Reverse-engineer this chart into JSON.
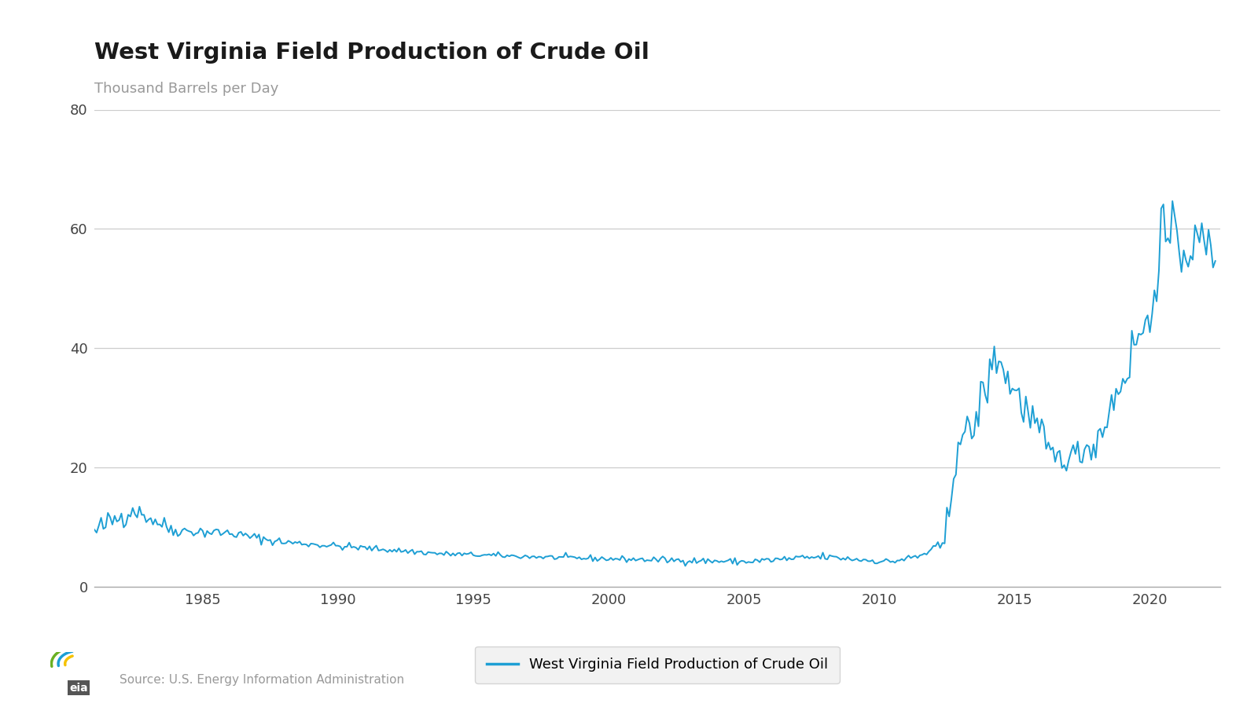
{
  "title": "West Virginia Field Production of Crude Oil",
  "ylabel": "Thousand Barrels per Day",
  "legend_label": "West Virginia Field Production of Crude Oil",
  "source_text": "Source: U.S. Energy Information Administration",
  "line_color": "#1e9fd4",
  "background_color": "#ffffff",
  "ylim": [
    0,
    80
  ],
  "yticks": [
    0,
    20,
    40,
    60,
    80
  ],
  "grid_color": "#cccccc",
  "title_fontsize": 21,
  "ylabel_fontsize": 13,
  "tick_fontsize": 13,
  "legend_fontsize": 13,
  "source_fontsize": 11,
  "xticks": [
    1985,
    1990,
    1995,
    2000,
    2005,
    2010,
    2015,
    2020
  ],
  "xlim": [
    1981.0,
    2022.6
  ]
}
